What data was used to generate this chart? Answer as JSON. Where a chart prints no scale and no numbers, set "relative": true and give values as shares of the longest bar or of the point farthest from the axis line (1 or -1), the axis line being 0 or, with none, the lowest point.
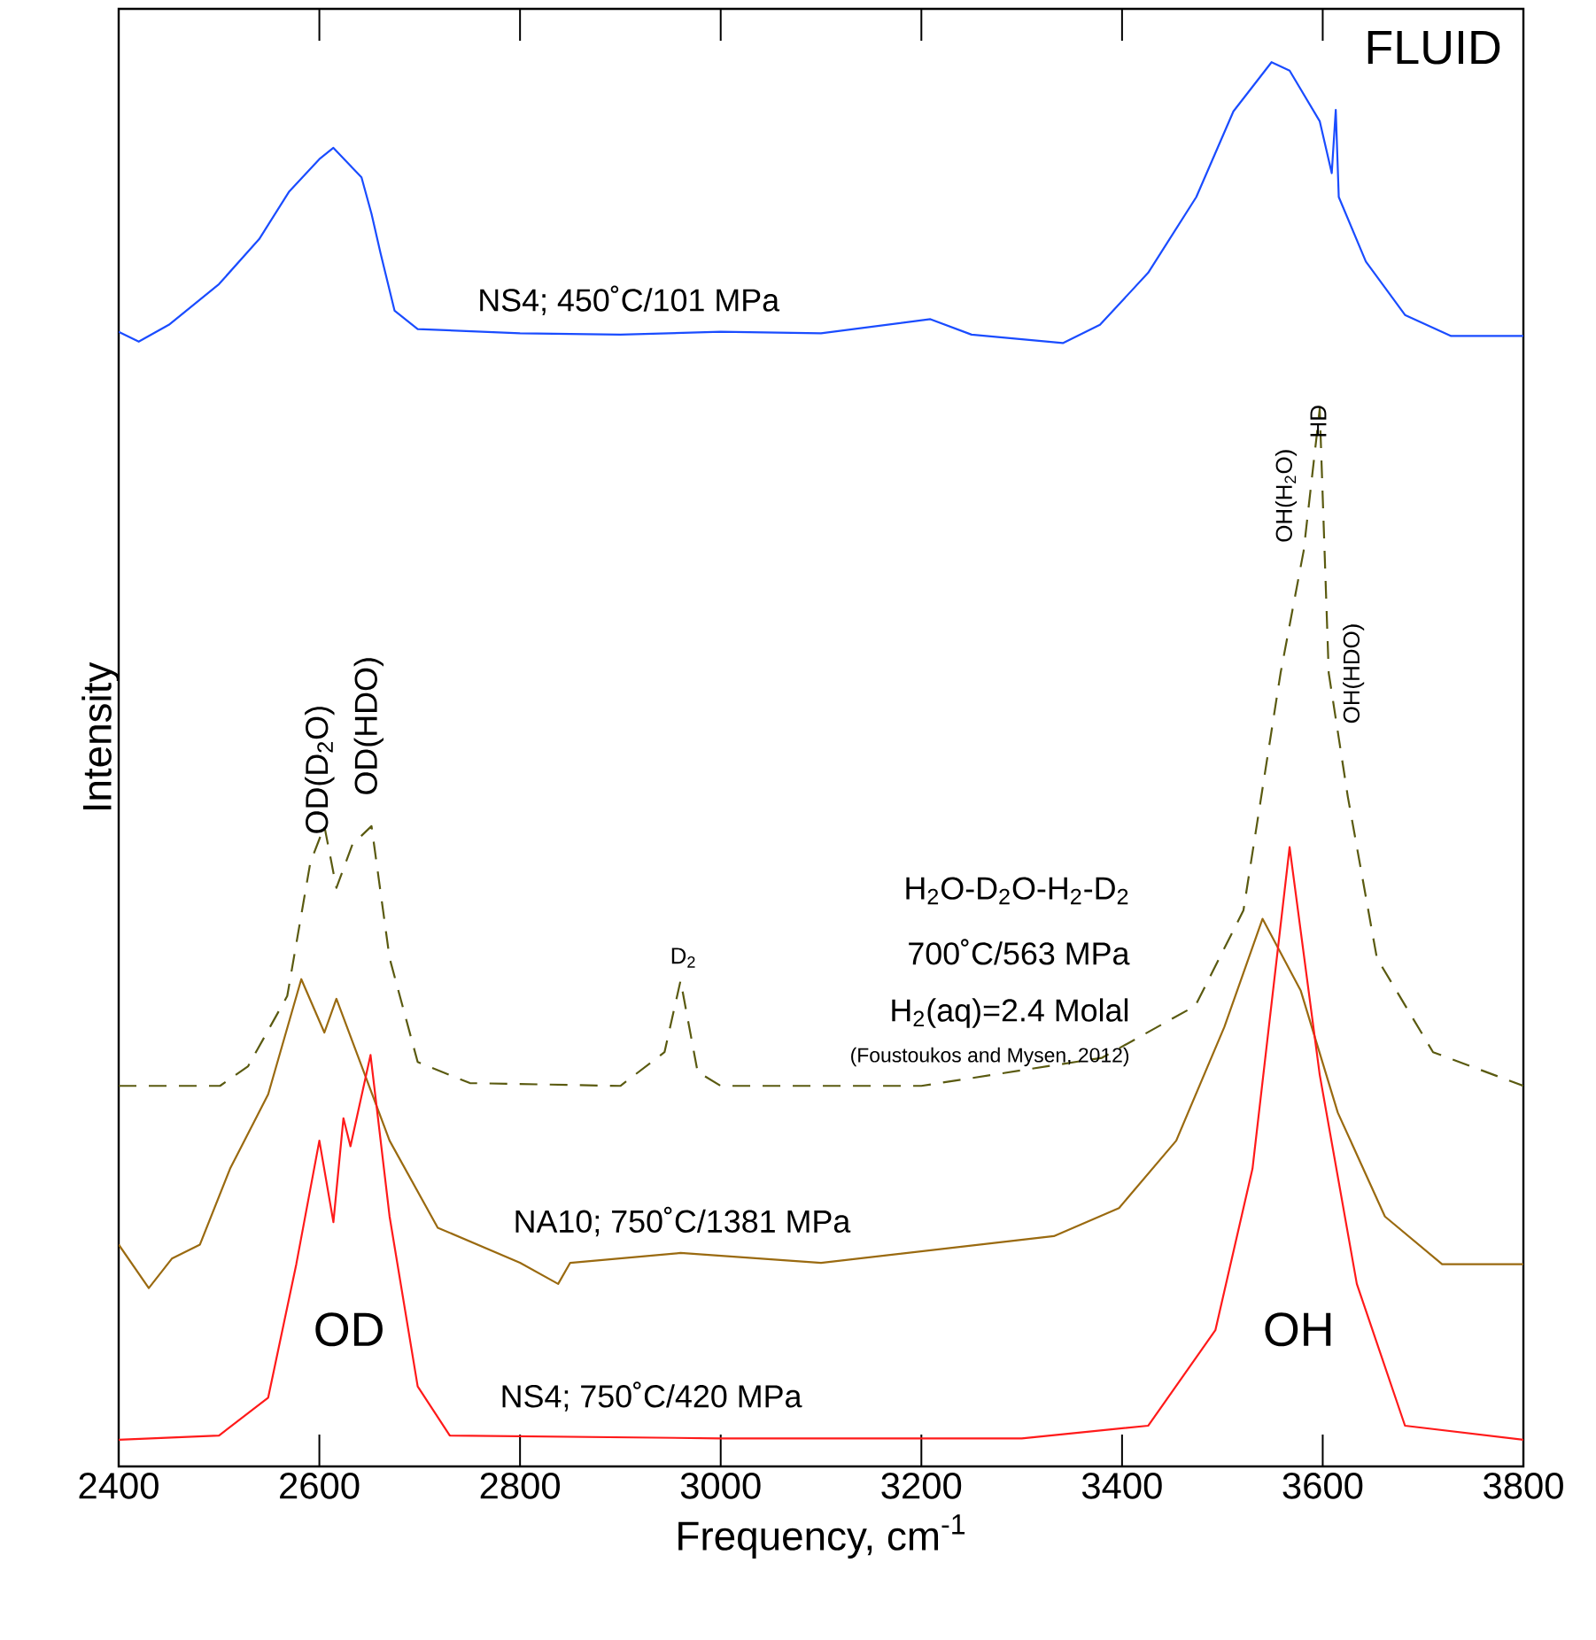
{
  "chart_data": {
    "type": "line",
    "relative": true,
    "xlabel": "Frequency, cm$^{-1}$",
    "ylabel": "Intensity",
    "xlim": [
      2400,
      3800
    ],
    "xticks": [
      2400,
      2600,
      2800,
      3000,
      3200,
      3400,
      3600,
      3800
    ],
    "marker": "none",
    "series": [
      {
        "color": "#1a4cff",
        "line_style": "solid",
        "x": [
          2400,
          2420,
          2450,
          2500,
          2540,
          2570,
          2600,
          2614,
          2642,
          2652,
          2661,
          2675,
          2698,
          2800,
          2900,
          3000,
          3100,
          3209,
          3250,
          3341,
          3378,
          3426,
          3474,
          3511,
          3549,
          3567,
          3597,
          3609,
          3613,
          3616,
          3643,
          3682,
          3728,
          3800
        ],
        "values": [
          0.808,
          0.801,
          0.813,
          0.842,
          0.874,
          0.908,
          0.931,
          0.939,
          0.918,
          0.892,
          0.864,
          0.823,
          0.81,
          0.807,
          0.806,
          0.808,
          0.807,
          0.817,
          0.806,
          0.8,
          0.813,
          0.85,
          0.904,
          0.965,
          1.0,
          0.994,
          0.958,
          0.921,
          0.966,
          0.904,
          0.858,
          0.82,
          0.805,
          0.805
        ]
      },
      {
        "color": "#5a5a10",
        "line_style": "dashed",
        "x": [
          2400,
          2501,
          2529,
          2568,
          2591,
          2605,
          2617,
          2633,
          2652,
          2670,
          2698,
          2750,
          2900,
          2944,
          2960,
          2977,
          3000,
          3200,
          3380,
          3473,
          3521,
          3558,
          3581,
          3597,
          3606,
          3625,
          3654,
          3710,
          3800
        ],
        "values": [
          0.271,
          0.271,
          0.285,
          0.335,
          0.43,
          0.456,
          0.412,
          0.443,
          0.456,
          0.362,
          0.288,
          0.273,
          0.271,
          0.295,
          0.346,
          0.281,
          0.271,
          0.271,
          0.291,
          0.328,
          0.396,
          0.565,
          0.652,
          0.753,
          0.565,
          0.477,
          0.362,
          0.295,
          0.271
        ]
      },
      {
        "color": "#9a6a10",
        "line_style": "solid",
        "x": [
          2400,
          2430,
          2453,
          2481,
          2511,
          2549,
          2582,
          2605,
          2617,
          2638,
          2670,
          2718,
          2800,
          2838,
          2850,
          2960,
          3100,
          3332,
          3397,
          3454,
          3502,
          3540,
          3578,
          3615,
          3662,
          3719,
          3800
        ],
        "values": [
          0.158,
          0.127,
          0.148,
          0.158,
          0.212,
          0.265,
          0.347,
          0.309,
          0.333,
          0.293,
          0.232,
          0.17,
          0.145,
          0.13,
          0.145,
          0.152,
          0.145,
          0.164,
          0.184,
          0.232,
          0.313,
          0.39,
          0.339,
          0.252,
          0.178,
          0.144,
          0.144
        ]
      },
      {
        "color": "#ff1a1a",
        "line_style": "solid",
        "x": [
          2400,
          2500,
          2549,
          2577,
          2600,
          2614,
          2624,
          2631,
          2651,
          2670,
          2698,
          2730,
          3000,
          3300,
          3426,
          3493,
          3530,
          3567,
          3597,
          3634,
          3682,
          3800
        ],
        "values": [
          0.019,
          0.022,
          0.049,
          0.144,
          0.232,
          0.174,
          0.248,
          0.228,
          0.293,
          0.178,
          0.057,
          0.022,
          0.02,
          0.02,
          0.029,
          0.097,
          0.212,
          0.441,
          0.279,
          0.13,
          0.029,
          0.019
        ]
      }
    ],
    "annotations": [
      "NS4; 450˚C/101 MPa",
      "FLUID",
      "OD(D$_{2}$O)",
      "OD(HDO)",
      "D$_{2}$",
      "OH(H$_{2}$O)",
      "HD",
      "OH(HDO)",
      "H$_{2}$O-D$_{2}$O-H$_{2}$-D$_{2}$",
      "700˚C/563 MPa",
      "H$_{2}$(aq)=2.4 Molal",
      "(Foustoukos and Mysen, 2012)",
      "NA10; 750˚C/1381 MPa",
      "OD",
      "OH",
      "NS4; 750˚C/420 MPa"
    ]
  }
}
